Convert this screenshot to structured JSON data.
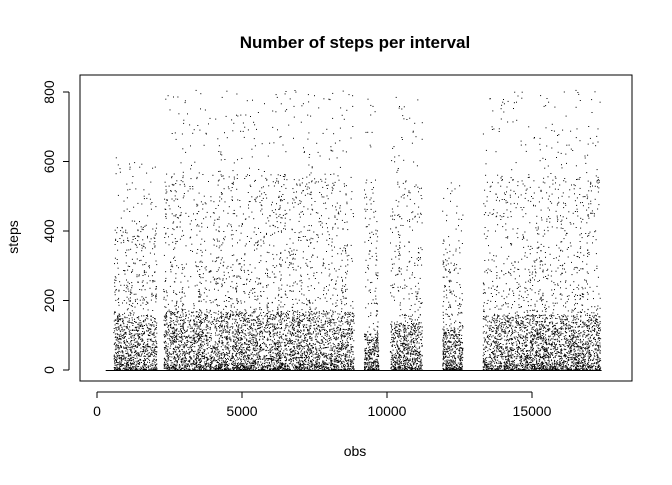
{
  "chart_data": {
    "type": "scatter",
    "title": "Number of steps per interval",
    "xlabel": "obs",
    "ylabel": "steps",
    "xlim": [
      0,
      18000
    ],
    "ylim": [
      0,
      820
    ],
    "x_ticks": [
      0,
      5000,
      10000,
      15000
    ],
    "x_tick_labels": [
      "0",
      "5000",
      "10000",
      "15000"
    ],
    "y_ticks": [
      0,
      200,
      400,
      600,
      800
    ],
    "y_tick_labels": [
      "0",
      "200",
      "400",
      "600",
      "800"
    ],
    "grid": false,
    "legend": "none",
    "point_color": "#000000",
    "n_points": 17568,
    "zero_segments": [
      [
        300,
        17400
      ]
    ],
    "active_blocks": [
      {
        "x_range": [
          570,
          2050
        ],
        "typical_max": 160,
        "peak_max": 610
      },
      {
        "x_range": [
          2300,
          8850
        ],
        "typical_max": 170,
        "peak_max": 806
      },
      {
        "x_range": [
          9200,
          9700
        ],
        "typical_max": 110,
        "peak_max": 786
      },
      {
        "x_range": [
          10100,
          11200
        ],
        "typical_max": 140,
        "peak_max": 786
      },
      {
        "x_range": [
          11900,
          12600
        ],
        "typical_max": 120,
        "peak_max": 540
      },
      {
        "x_range": [
          13300,
          17350
        ],
        "typical_max": 160,
        "peak_max": 806
      }
    ],
    "sample_points": [
      {
        "x": 650,
        "y": 612
      },
      {
        "x": 1200,
        "y": 540
      },
      {
        "x": 1600,
        "y": 520
      },
      {
        "x": 2500,
        "y": 750
      },
      {
        "x": 3400,
        "y": 806
      },
      {
        "x": 4300,
        "y": 786
      },
      {
        "x": 6200,
        "y": 786
      },
      {
        "x": 7700,
        "y": 550
      },
      {
        "x": 8800,
        "y": 760
      },
      {
        "x": 9500,
        "y": 760
      },
      {
        "x": 10300,
        "y": 786
      },
      {
        "x": 10900,
        "y": 600
      },
      {
        "x": 12200,
        "y": 540
      },
      {
        "x": 14000,
        "y": 780
      },
      {
        "x": 14500,
        "y": 790
      },
      {
        "x": 15400,
        "y": 760
      },
      {
        "x": 16500,
        "y": 806
      },
      {
        "x": 17200,
        "y": 560
      }
    ]
  }
}
